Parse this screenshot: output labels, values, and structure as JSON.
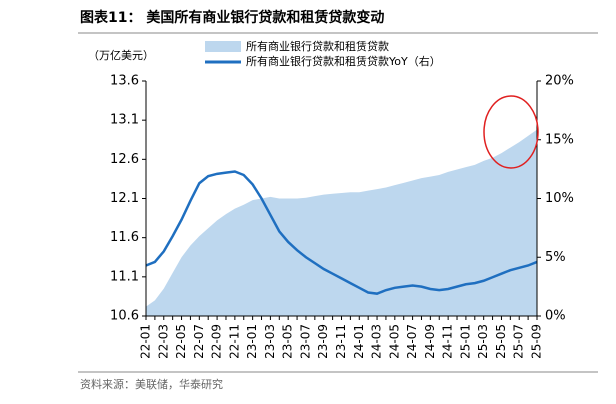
{
  "chart_data": {
    "type": "area-line",
    "title": "图表11：  美国所有商业银行贷款和租赁贷款变动",
    "y_label": "（万亿美元）",
    "source": "资料来源：美联储，华泰研究",
    "categories": [
      "22-01",
      null,
      "22-03",
      null,
      "22-05",
      null,
      "22-07",
      null,
      "22-09",
      null,
      "22-11",
      null,
      "23-01",
      null,
      "23-03",
      null,
      "23-05",
      null,
      "23-07",
      null,
      "23-09",
      null,
      "23-11",
      null,
      "24-01",
      null,
      "24-03",
      null,
      "24-05",
      null,
      "24-07",
      null,
      "24-09",
      null,
      "24-11",
      null,
      "25-01",
      null,
      "25-03",
      null,
      "25-05",
      null,
      "25-07",
      null,
      "25-09"
    ],
    "series": [
      {
        "name": "所有商业银行贷款和租赁贷款",
        "kind": "area",
        "color": "#bdd7ee",
        "values": [
          10.72,
          10.8,
          10.95,
          11.15,
          11.35,
          11.5,
          11.62,
          11.72,
          11.82,
          11.9,
          11.97,
          12.02,
          12.08,
          12.1,
          12.12,
          12.1,
          12.1,
          12.1,
          12.11,
          12.13,
          12.15,
          12.16,
          12.17,
          12.18,
          12.18,
          12.2,
          12.22,
          12.24,
          12.27,
          12.3,
          12.33,
          12.36,
          12.38,
          12.4,
          12.44,
          12.47,
          12.5,
          12.53,
          12.58,
          12.62,
          12.68,
          12.75,
          12.82,
          12.9,
          12.98
        ]
      },
      {
        "name": "所有商业银行贷款和租赁贷款YoY（右）",
        "kind": "line",
        "axis": "y2",
        "color": "#1f6fc0",
        "values": [
          4.3,
          4.6,
          5.5,
          6.8,
          8.2,
          9.8,
          11.3,
          11.9,
          12.1,
          12.2,
          12.3,
          12.0,
          11.2,
          10.0,
          8.6,
          7.2,
          6.3,
          5.6,
          5.0,
          4.5,
          4.0,
          3.6,
          3.2,
          2.8,
          2.4,
          2.0,
          1.9,
          2.2,
          2.4,
          2.5,
          2.6,
          2.5,
          2.3,
          2.2,
          2.3,
          2.5,
          2.7,
          2.8,
          3.0,
          3.3,
          3.6,
          3.9,
          4.1,
          4.3,
          4.6
        ]
      }
    ],
    "ylim": [
      10.6,
      13.6
    ],
    "yticks": [
      10.6,
      11.1,
      11.6,
      12.1,
      12.6,
      13.1,
      13.6
    ],
    "y2lim": [
      0,
      20
    ],
    "y2ticks": [
      {
        "value": 0,
        "label": "0%"
      },
      {
        "value": 5,
        "label": "5%"
      },
      {
        "value": 10,
        "label": "10%"
      },
      {
        "value": 15,
        "label": "15%"
      },
      {
        "value": 20,
        "label": "20%"
      }
    ]
  }
}
